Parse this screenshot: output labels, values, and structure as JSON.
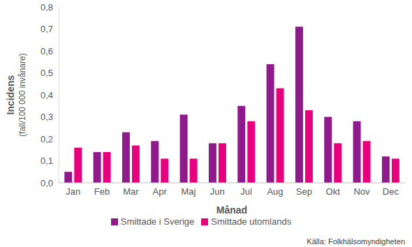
{
  "chart_data": {
    "type": "bar",
    "categories": [
      "Jan",
      "Feb",
      "Mar",
      "Apr",
      "Maj",
      "Jun",
      "Jul",
      "Aug",
      "Sep",
      "Okt",
      "Nov",
      "Dec"
    ],
    "series": [
      {
        "name": "Smittade i Sverige",
        "color": "#8e1a8c",
        "values": [
          0.05,
          0.14,
          0.23,
          0.19,
          0.31,
          0.18,
          0.35,
          0.54,
          0.71,
          0.3,
          0.28,
          0.12
        ]
      },
      {
        "name": "Smittade utomlands",
        "color": "#e6007e",
        "values": [
          0.16,
          0.14,
          0.17,
          0.11,
          0.11,
          0.18,
          0.28,
          0.43,
          0.33,
          0.18,
          0.19,
          0.11
        ]
      }
    ],
    "x_label": "Månad",
    "y_label": [
      "Incidens",
      "(fall/100 000 invånare)"
    ],
    "ylim": [
      0,
      0.8
    ],
    "yticks": [
      {
        "value": 0,
        "label": "0,0"
      },
      {
        "value": 0.1,
        "label": "0,1"
      },
      {
        "value": 0.2,
        "label": "0,2"
      },
      {
        "value": 0.3,
        "label": "0,3"
      },
      {
        "value": 0.4,
        "label": "0,4"
      },
      {
        "value": 0.5,
        "label": "0,5"
      },
      {
        "value": 0.6,
        "label": "0,6"
      },
      {
        "value": 0.7,
        "label": "0,7"
      },
      {
        "value": 0.8,
        "label": "0,8"
      }
    ],
    "grid": false,
    "legend": "bottom",
    "annotations": [
      "Källa: Folkhälsomyndigheten"
    ]
  }
}
